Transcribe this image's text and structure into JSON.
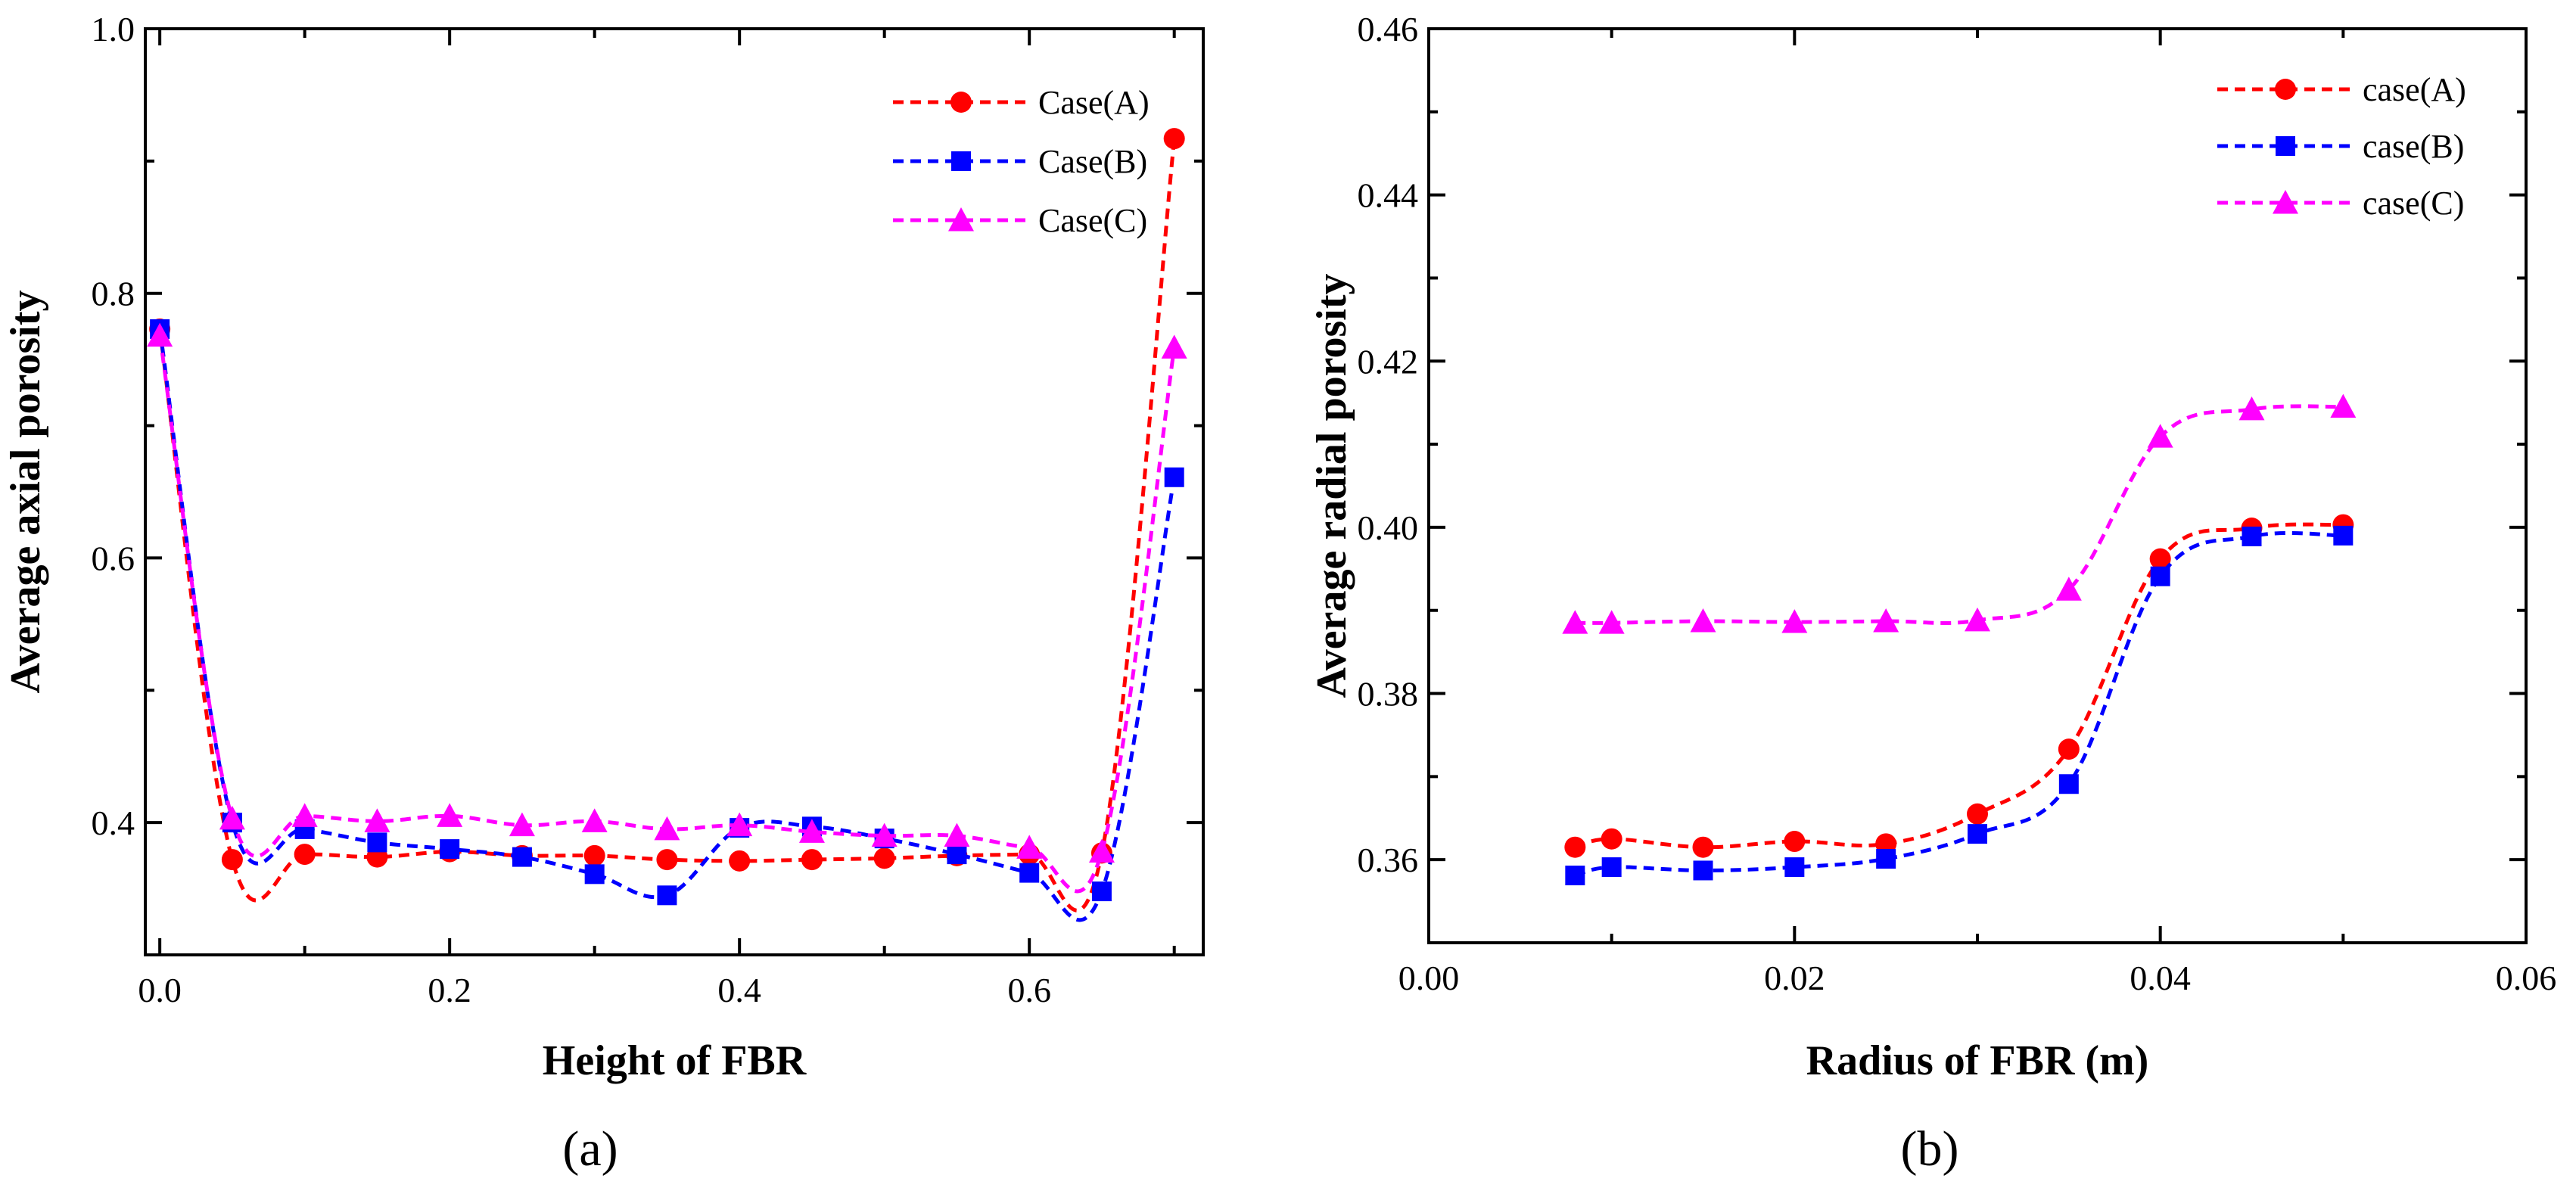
{
  "chart_data": [
    {
      "type": "line",
      "panel_label": "(a)",
      "xlabel": "Height of FBR",
      "ylabel": "Average axial porosity",
      "xlim": [
        -0.01,
        0.72
      ],
      "ylim": [
        0.3,
        1.0
      ],
      "xticks": [
        0.0,
        0.2,
        0.4,
        0.6
      ],
      "xtick_labels": [
        "0.0",
        "0.2",
        "0.4",
        "0.6"
      ],
      "yticks": [
        0.4,
        0.6,
        0.8,
        1.0
      ],
      "ytick_labels": [
        "0.4",
        "0.6",
        "0.8",
        "1.0"
      ],
      "legend_position": "top-right",
      "x": [
        0.0,
        0.05,
        0.1,
        0.15,
        0.2,
        0.25,
        0.3,
        0.35,
        0.4,
        0.45,
        0.5,
        0.55,
        0.6,
        0.65,
        0.7
      ],
      "series": [
        {
          "name": "Case(A)",
          "color": "#ff0000",
          "marker": "circle",
          "values": [
            0.773,
            0.372,
            0.376,
            0.374,
            0.378,
            0.375,
            0.375,
            0.372,
            0.371,
            0.372,
            0.373,
            0.375,
            0.376,
            0.377,
            0.917
          ]
        },
        {
          "name": "Case(B)",
          "color": "#0000ff",
          "marker": "square",
          "values": [
            0.773,
            0.4,
            0.395,
            0.385,
            0.38,
            0.374,
            0.361,
            0.345,
            0.396,
            0.397,
            0.388,
            0.376,
            0.362,
            0.348,
            0.661
          ]
        },
        {
          "name": "Case(C)",
          "color": "#ff00ff",
          "marker": "triangle",
          "values": [
            0.768,
            0.403,
            0.405,
            0.401,
            0.405,
            0.398,
            0.401,
            0.395,
            0.398,
            0.393,
            0.39,
            0.39,
            0.381,
            0.378,
            0.759
          ]
        }
      ]
    },
    {
      "type": "line",
      "panel_label": "(b)",
      "xlabel": "Radius of  FBR (m)",
      "ylabel": "Average radial porosity",
      "xlim": [
        0.0,
        0.06
      ],
      "ylim": [
        0.35,
        0.46
      ],
      "xticks": [
        0.0,
        0.02,
        0.04,
        0.06
      ],
      "xtick_labels": [
        "0.00",
        "0.02",
        "0.04",
        "0.06"
      ],
      "yticks": [
        0.36,
        0.38,
        0.4,
        0.42,
        0.44,
        0.46
      ],
      "ytick_labels": [
        "0.36",
        "0.38",
        "0.40",
        "0.42",
        "0.44",
        "0.46"
      ],
      "legend_position": "top-right",
      "x": [
        0.008,
        0.01,
        0.015,
        0.02,
        0.025,
        0.03,
        0.035,
        0.04,
        0.045,
        0.05
      ],
      "series": [
        {
          "name": "case(A)",
          "color": "#ff0000",
          "marker": "circle",
          "values": [
            0.3615,
            0.3625,
            0.3615,
            0.3622,
            0.3619,
            0.3655,
            0.3733,
            0.3962,
            0.3999,
            0.4003
          ]
        },
        {
          "name": "case(B)",
          "color": "#0000ff",
          "marker": "square",
          "values": [
            0.3581,
            0.3591,
            0.3587,
            0.3591,
            0.3601,
            0.3631,
            0.3691,
            0.3941,
            0.3989,
            0.399
          ]
        },
        {
          "name": "case(C)",
          "color": "#ff00ff",
          "marker": "triangle",
          "values": [
            0.3885,
            0.3885,
            0.3887,
            0.3886,
            0.3887,
            0.3888,
            0.3925,
            0.4109,
            0.4142,
            0.4145
          ]
        }
      ]
    }
  ]
}
